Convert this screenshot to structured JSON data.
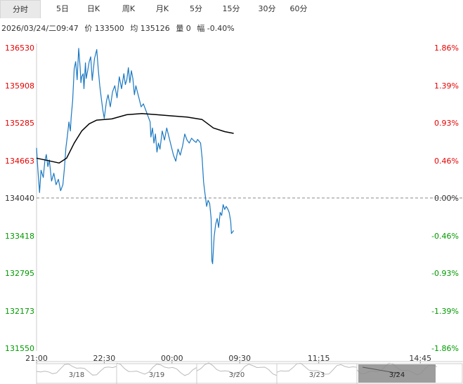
{
  "tabs": [
    "分时",
    "5日",
    "日K",
    "周K",
    "月K",
    "5分",
    "15分",
    "30分",
    "60分"
  ],
  "active_tab": 0,
  "info": {
    "datetime": "2026/03/24/二09:47",
    "price": "价 133500",
    "avg": "均 135126",
    "volume": "量 0",
    "change": "幅 -0.40%"
  },
  "colors": {
    "up": "#e60000",
    "down": "#009900",
    "neutral": "#333333",
    "price_line": "#1a78c2",
    "avg_line": "#000000"
  },
  "chart_data": {
    "type": "line",
    "title": "",
    "base_price": 134040,
    "ylim": [
      131550,
      136530
    ],
    "y_ticks": [
      "136530",
      "135908",
      "135285",
      "134663",
      "134040",
      "133418",
      "132795",
      "132173",
      "131550"
    ],
    "pct_ticks": [
      "1.86%",
      "1.39%",
      "0.93%",
      "0.46%",
      "0.00%",
      "-0.46%",
      "-0.93%",
      "-1.39%",
      "-1.86%"
    ],
    "x_ticks": [
      "21:00",
      "22:30",
      "00:00",
      "09:30",
      "11:15",
      "14:45"
    ],
    "x_tick_minutes": [
      0,
      90,
      180,
      270,
      375,
      510
    ],
    "x_range": [
      0,
      520
    ],
    "series": [
      {
        "key": "price",
        "points": [
          [
            0,
            134870
          ],
          [
            2,
            134480
          ],
          [
            4,
            134130
          ],
          [
            6,
            134500
          ],
          [
            9,
            134380
          ],
          [
            11,
            134650
          ],
          [
            13,
            134760
          ],
          [
            15,
            134560
          ],
          [
            17,
            134670
          ],
          [
            20,
            134320
          ],
          [
            23,
            134450
          ],
          [
            26,
            134260
          ],
          [
            29,
            134350
          ],
          [
            32,
            134160
          ],
          [
            35,
            134260
          ],
          [
            37,
            134520
          ],
          [
            39,
            134870
          ],
          [
            41,
            135070
          ],
          [
            43,
            135300
          ],
          [
            45,
            135150
          ],
          [
            46,
            135380
          ],
          [
            48,
            135650
          ],
          [
            50,
            136180
          ],
          [
            52,
            136300
          ],
          [
            54,
            136000
          ],
          [
            56,
            136520
          ],
          [
            58,
            136200
          ],
          [
            59,
            135950
          ],
          [
            60,
            136050
          ],
          [
            62,
            136100
          ],
          [
            63,
            135850
          ],
          [
            65,
            136280
          ],
          [
            66,
            136020
          ],
          [
            68,
            136150
          ],
          [
            70,
            136300
          ],
          [
            72,
            136380
          ],
          [
            74,
            135990
          ],
          [
            77,
            136350
          ],
          [
            80,
            136500
          ],
          [
            82,
            136180
          ],
          [
            84,
            135900
          ],
          [
            86,
            135700
          ],
          [
            88,
            135500
          ],
          [
            90,
            135360
          ],
          [
            93,
            135650
          ],
          [
            95,
            135750
          ],
          [
            98,
            135550
          ],
          [
            101,
            135800
          ],
          [
            104,
            135900
          ],
          [
            107,
            135700
          ],
          [
            110,
            136050
          ],
          [
            113,
            135850
          ],
          [
            116,
            136100
          ],
          [
            118,
            135920
          ],
          [
            120,
            136000
          ],
          [
            122,
            136200
          ],
          [
            124,
            135950
          ],
          [
            126,
            136150
          ],
          [
            128,
            136020
          ],
          [
            130,
            135750
          ],
          [
            132,
            135900
          ],
          [
            134,
            135800
          ],
          [
            136,
            135700
          ],
          [
            139,
            135550
          ],
          [
            142,
            135600
          ],
          [
            145,
            135500
          ],
          [
            148,
            135400
          ],
          [
            151,
            135300
          ],
          [
            152,
            135050
          ],
          [
            154,
            135200
          ],
          [
            156,
            134950
          ],
          [
            158,
            135100
          ],
          [
            160,
            134800
          ],
          [
            162,
            134950
          ],
          [
            164,
            134850
          ],
          [
            167,
            135150
          ],
          [
            170,
            135000
          ],
          [
            173,
            135200
          ],
          [
            176,
            135050
          ],
          [
            179,
            134900
          ],
          [
            182,
            134750
          ],
          [
            185,
            134650
          ],
          [
            188,
            134850
          ],
          [
            191,
            134750
          ],
          [
            194,
            134900
          ],
          [
            197,
            135100
          ],
          [
            200,
            135000
          ],
          [
            203,
            134950
          ],
          [
            206,
            135030
          ],
          [
            209,
            134990
          ],
          [
            212,
            134960
          ],
          [
            214,
            135010
          ],
          [
            216,
            134980
          ],
          [
            218,
            134950
          ],
          [
            220,
            134700
          ],
          [
            222,
            134300
          ],
          [
            224,
            134100
          ],
          [
            226,
            133900
          ],
          [
            228,
            134000
          ],
          [
            230,
            133950
          ],
          [
            232,
            133700
          ],
          [
            233,
            133000
          ],
          [
            234,
            132950
          ],
          [
            236,
            133400
          ],
          [
            238,
            133600
          ],
          [
            240,
            133700
          ],
          [
            242,
            133550
          ],
          [
            244,
            133800
          ],
          [
            246,
            133750
          ],
          [
            248,
            133930
          ],
          [
            250,
            133850
          ],
          [
            252,
            133900
          ],
          [
            254,
            133860
          ],
          [
            256,
            133800
          ],
          [
            258,
            133650
          ],
          [
            259,
            133450
          ],
          [
            262,
            133500
          ]
        ]
      },
      {
        "key": "avg",
        "points": [
          [
            0,
            134700
          ],
          [
            15,
            134660
          ],
          [
            30,
            134620
          ],
          [
            40,
            134700
          ],
          [
            50,
            134950
          ],
          [
            60,
            135150
          ],
          [
            70,
            135270
          ],
          [
            80,
            135330
          ],
          [
            100,
            135350
          ],
          [
            120,
            135420
          ],
          [
            140,
            135440
          ],
          [
            160,
            135420
          ],
          [
            180,
            135400
          ],
          [
            200,
            135380
          ],
          [
            220,
            135340
          ],
          [
            235,
            135200
          ],
          [
            250,
            135140
          ],
          [
            262,
            135110
          ]
        ]
      }
    ]
  },
  "navigator": {
    "labels": [
      "3/18",
      "3/19",
      "3/20",
      "3/23",
      "3/24"
    ]
  }
}
